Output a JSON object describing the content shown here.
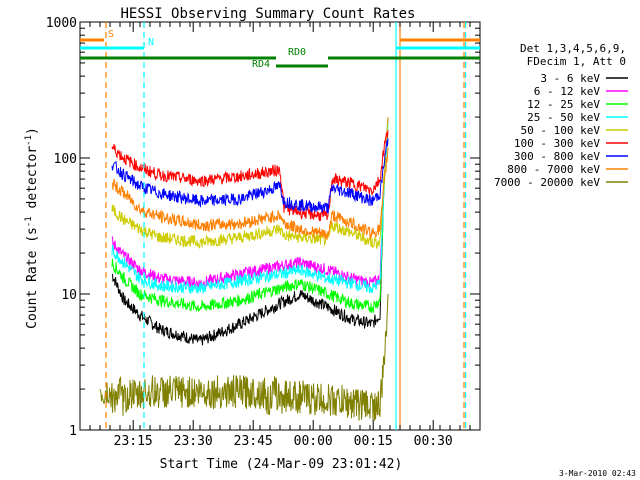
{
  "chart_data": {
    "type": "line",
    "title": "HESSI Observing Summary Count Rates",
    "xlabel": "Start Time (24-Mar-09 23:01:42)",
    "ylabel": "Count Rate (s",
    "ylabel_sup": "-1",
    "ylabel_mid": " detector",
    "ylabel_end": ")",
    "y_scale": "log",
    "ylim": [
      1,
      1000
    ],
    "xlim_minutes": [
      0,
      100
    ],
    "x_ticks": [
      {
        "label": "23:15",
        "minute": 13.3
      },
      {
        "label": "23:30",
        "minute": 28.3
      },
      {
        "label": "23:45",
        "minute": 43.3
      },
      {
        "label": "00:00",
        "minute": 58.3
      },
      {
        "label": "00:15",
        "minute": 73.3
      },
      {
        "label": "00:30",
        "minute": 88.3
      }
    ],
    "y_ticks": [
      {
        "label": "1",
        "value": 1
      },
      {
        "label": "10",
        "value": 10
      },
      {
        "label": "100",
        "value": 100
      },
      {
        "label": "1000",
        "value": 1000
      }
    ],
    "legend_position": "right",
    "legend_header": [
      "Det 1,3,4,5,6,9,",
      "FDecim 1, Att 0"
    ],
    "series": [
      {
        "name": "3 - 6 keV",
        "color": "#000000",
        "points": [
          [
            8,
            14
          ],
          [
            11,
            9
          ],
          [
            15,
            7
          ],
          [
            20,
            5.5
          ],
          [
            30,
            4.5
          ],
          [
            40,
            6
          ],
          [
            50,
            8.5
          ],
          [
            55,
            10
          ],
          [
            62,
            8
          ],
          [
            68,
            6.5
          ],
          [
            73,
            6
          ],
          [
            75,
            7
          ],
          [
            76,
            70
          ],
          [
            77,
            200
          ]
        ]
      },
      {
        "name": "6 - 12 keV",
        "color": "#ff00ff",
        "points": [
          [
            8,
            24
          ],
          [
            11,
            19
          ],
          [
            15,
            15
          ],
          [
            20,
            13
          ],
          [
            30,
            12
          ],
          [
            40,
            14
          ],
          [
            50,
            16
          ],
          [
            55,
            17
          ],
          [
            62,
            15
          ],
          [
            68,
            13
          ],
          [
            73,
            12
          ],
          [
            75,
            13
          ],
          [
            76,
            70
          ],
          [
            77,
            200
          ]
        ]
      },
      {
        "name": "12 - 25 keV",
        "color": "#00ff00",
        "points": [
          [
            8,
            17
          ],
          [
            11,
            13
          ],
          [
            15,
            10
          ],
          [
            20,
            9
          ],
          [
            30,
            8
          ],
          [
            40,
            9
          ],
          [
            50,
            11
          ],
          [
            55,
            12
          ],
          [
            62,
            10
          ],
          [
            68,
            8.5
          ],
          [
            73,
            8
          ],
          [
            75,
            9
          ],
          [
            76,
            60
          ],
          [
            77,
            180
          ]
        ]
      },
      {
        "name": "25 - 50 keV",
        "color": "#00ffff",
        "points": [
          [
            8,
            21
          ],
          [
            11,
            17
          ],
          [
            15,
            13
          ],
          [
            20,
            11.5
          ],
          [
            30,
            11
          ],
          [
            40,
            12.5
          ],
          [
            50,
            14
          ],
          [
            55,
            15
          ],
          [
            62,
            13
          ],
          [
            68,
            12
          ],
          [
            73,
            11
          ],
          [
            75,
            12
          ],
          [
            76,
            60
          ],
          [
            77,
            180
          ]
        ]
      },
      {
        "name": "50 - 100 keV",
        "color": "#cccc00",
        "points": [
          [
            8,
            42
          ],
          [
            11,
            35
          ],
          [
            15,
            30
          ],
          [
            20,
            26
          ],
          [
            30,
            24
          ],
          [
            40,
            26
          ],
          [
            50,
            30
          ],
          [
            51,
            27
          ],
          [
            55,
            26
          ],
          [
            62,
            25
          ],
          [
            63,
            32
          ],
          [
            68,
            28
          ],
          [
            73,
            24
          ],
          [
            75,
            24
          ],
          [
            76,
            70
          ],
          [
            77,
            200
          ]
        ]
      },
      {
        "name": "100 - 300 keV",
        "color": "#ff0000",
        "points": [
          [
            8,
            120
          ],
          [
            11,
            100
          ],
          [
            15,
            85
          ],
          [
            20,
            75
          ],
          [
            30,
            68
          ],
          [
            40,
            73
          ],
          [
            50,
            82
          ],
          [
            51,
            43
          ],
          [
            55,
            40
          ],
          [
            62,
            37
          ],
          [
            63,
            70
          ],
          [
            68,
            65
          ],
          [
            73,
            58
          ],
          [
            75,
            70
          ],
          [
            76,
            120
          ],
          [
            77,
            160
          ]
        ]
      },
      {
        "name": "300 - 800 keV",
        "color": "#0000ff",
        "points": [
          [
            8,
            90
          ],
          [
            11,
            75
          ],
          [
            15,
            62
          ],
          [
            20,
            55
          ],
          [
            30,
            48
          ],
          [
            40,
            50
          ],
          [
            50,
            62
          ],
          [
            51,
            48
          ],
          [
            55,
            45
          ],
          [
            62,
            43
          ],
          [
            63,
            60
          ],
          [
            68,
            55
          ],
          [
            73,
            48
          ],
          [
            75,
            55
          ],
          [
            76,
            90
          ],
          [
            77,
            140
          ]
        ]
      },
      {
        "name": "800 - 7000 keV",
        "color": "#ff8000",
        "points": [
          [
            8,
            65
          ],
          [
            11,
            55
          ],
          [
            15,
            42
          ],
          [
            20,
            37
          ],
          [
            30,
            32
          ],
          [
            40,
            33
          ],
          [
            50,
            38
          ],
          [
            51,
            33
          ],
          [
            55,
            30
          ],
          [
            62,
            27
          ],
          [
            63,
            38
          ],
          [
            68,
            33
          ],
          [
            73,
            28
          ],
          [
            75,
            30
          ],
          [
            76,
            60
          ],
          [
            77,
            120
          ]
        ]
      },
      {
        "name": "7000 - 20000 keV",
        "color": "#808000",
        "points": [
          [
            5,
            1.9
          ],
          [
            6,
            1.8
          ],
          [
            7,
            1.9
          ],
          [
            8,
            1.7
          ],
          [
            9,
            1.8
          ],
          [
            10,
            1.9
          ],
          [
            11,
            1.6
          ],
          [
            12,
            1.8
          ],
          [
            13,
            1.9
          ],
          [
            14,
            1.7
          ],
          [
            15,
            1.8
          ],
          [
            16,
            1.9
          ],
          [
            46,
            1.9
          ],
          [
            47,
            1.6
          ],
          [
            48,
            1.8
          ],
          [
            49,
            1.9
          ],
          [
            50,
            1.7
          ],
          [
            51,
            1.8
          ],
          [
            75,
            1.5
          ],
          [
            76,
            3
          ],
          [
            77,
            10
          ]
        ]
      }
    ],
    "markers": {
      "vertical_lines": [
        {
          "minute": 6.5,
          "color": "#ff8000",
          "style": "dashed"
        },
        {
          "minute": 16,
          "color": "#00ffff",
          "style": "dashed"
        },
        {
          "minute": 79,
          "color": "#00ffff",
          "style": "solid"
        },
        {
          "minute": 80,
          "color": "#ff8000",
          "style": "solid"
        },
        {
          "minute": 96,
          "color": "#ff8000",
          "style": "dashed"
        },
        {
          "minute": 96.4,
          "color": "#00ffff",
          "style": "dashed"
        }
      ],
      "bars": [
        {
          "label": "S",
          "color": "#ff8000",
          "segments": [
            [
              0,
              6
            ],
            [
              80,
              100
            ]
          ]
        },
        {
          "label": "N",
          "color": "#00ffff",
          "segments": [
            [
              0,
              16
            ],
            [
              79,
              100
            ]
          ]
        },
        {
          "label": "RD0",
          "color": "#008000",
          "segments": [
            [
              0,
              49
            ],
            [
              62,
              100
            ]
          ]
        },
        {
          "label": "RD4",
          "color": "#008000",
          "segments": [
            [
              49,
              62
            ]
          ]
        }
      ]
    }
  },
  "footer": {
    "timestamp": "3-Mar-2010 02:43"
  }
}
